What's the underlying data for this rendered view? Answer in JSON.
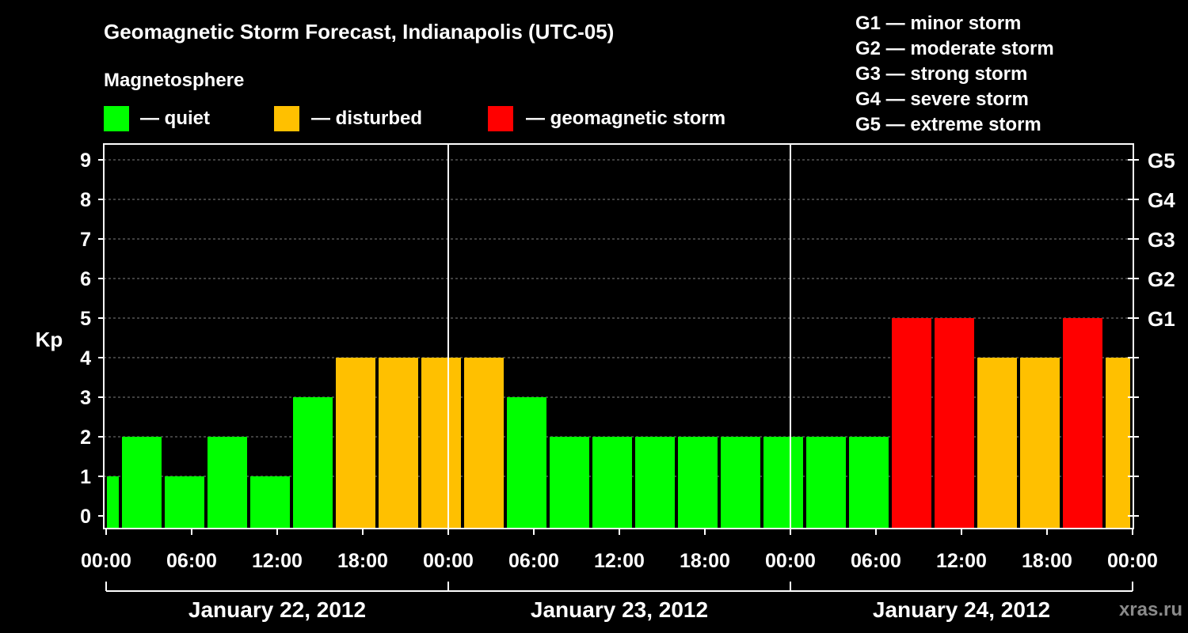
{
  "title": "Geomagnetic Storm Forecast, Indianapolis (UTC-05)",
  "legend": {
    "heading": "Magnetosphere",
    "items": [
      {
        "label": "— quiet",
        "color": "#00ff00"
      },
      {
        "label": "— disturbed",
        "color": "#ffc000"
      },
      {
        "label": "— geomagnetic storm",
        "color": "#ff0000"
      }
    ]
  },
  "storm_scale": [
    "G1 — minor storm",
    "G2 — moderate storm",
    "G3 — strong storm",
    "G4 — severe storm",
    "G5 — extreme storm"
  ],
  "watermark": "xras.ru",
  "colors": {
    "background": "#000000",
    "quiet": "#00ff00",
    "disturbed": "#ffc000",
    "storm": "#ff0000",
    "axis": "#ffffff",
    "grid": "#808080"
  },
  "chart_data": {
    "type": "bar",
    "ylabel": "Kp",
    "ylim": [
      0,
      9
    ],
    "yticks": [
      0,
      1,
      2,
      3,
      4,
      5,
      6,
      7,
      8,
      9
    ],
    "right_axis_labels": [
      {
        "kp": 5,
        "label": "G1"
      },
      {
        "kp": 6,
        "label": "G2"
      },
      {
        "kp": 7,
        "label": "G3"
      },
      {
        "kp": 8,
        "label": "G4"
      },
      {
        "kp": 9,
        "label": "G5"
      }
    ],
    "grid": "horizontal dashed",
    "x_hours_range": [
      0,
      72
    ],
    "x_tick_hours": [
      0,
      6,
      12,
      18,
      24,
      30,
      36,
      42,
      48,
      54,
      60,
      66,
      72
    ],
    "x_tick_labels": [
      "00:00",
      "06:00",
      "12:00",
      "18:00",
      "00:00",
      "06:00",
      "12:00",
      "18:00",
      "00:00",
      "06:00",
      "12:00",
      "18:00",
      "00:00"
    ],
    "day_separators_hours": [
      24,
      48
    ],
    "days": [
      {
        "label": "January 22, 2012",
        "start_hour": 0,
        "end_hour": 24
      },
      {
        "label": "January 23, 2012",
        "start_hour": 24,
        "end_hour": 48
      },
      {
        "label": "January 24, 2012",
        "start_hour": 48,
        "end_hour": 72
      }
    ],
    "bars": [
      {
        "start_hour": 0,
        "end_hour": 1,
        "kp": 1,
        "level": "quiet"
      },
      {
        "start_hour": 1,
        "end_hour": 4,
        "kp": 2,
        "level": "quiet"
      },
      {
        "start_hour": 4,
        "end_hour": 7,
        "kp": 1,
        "level": "quiet"
      },
      {
        "start_hour": 7,
        "end_hour": 10,
        "kp": 2,
        "level": "quiet"
      },
      {
        "start_hour": 10,
        "end_hour": 13,
        "kp": 1,
        "level": "quiet"
      },
      {
        "start_hour": 13,
        "end_hour": 16,
        "kp": 3,
        "level": "quiet"
      },
      {
        "start_hour": 16,
        "end_hour": 19,
        "kp": 4,
        "level": "disturbed"
      },
      {
        "start_hour": 19,
        "end_hour": 22,
        "kp": 4,
        "level": "disturbed"
      },
      {
        "start_hour": 22,
        "end_hour": 25,
        "kp": 4,
        "level": "disturbed"
      },
      {
        "start_hour": 25,
        "end_hour": 28,
        "kp": 4,
        "level": "disturbed"
      },
      {
        "start_hour": 28,
        "end_hour": 31,
        "kp": 3,
        "level": "quiet"
      },
      {
        "start_hour": 31,
        "end_hour": 34,
        "kp": 2,
        "level": "quiet"
      },
      {
        "start_hour": 34,
        "end_hour": 37,
        "kp": 2,
        "level": "quiet"
      },
      {
        "start_hour": 37,
        "end_hour": 40,
        "kp": 2,
        "level": "quiet"
      },
      {
        "start_hour": 40,
        "end_hour": 43,
        "kp": 2,
        "level": "quiet"
      },
      {
        "start_hour": 43,
        "end_hour": 46,
        "kp": 2,
        "level": "quiet"
      },
      {
        "start_hour": 46,
        "end_hour": 49,
        "kp": 2,
        "level": "quiet"
      },
      {
        "start_hour": 49,
        "end_hour": 52,
        "kp": 2,
        "level": "quiet"
      },
      {
        "start_hour": 52,
        "end_hour": 55,
        "kp": 2,
        "level": "quiet"
      },
      {
        "start_hour": 55,
        "end_hour": 58,
        "kp": 5,
        "level": "storm"
      },
      {
        "start_hour": 58,
        "end_hour": 61,
        "kp": 5,
        "level": "storm"
      },
      {
        "start_hour": 61,
        "end_hour": 64,
        "kp": 4,
        "level": "disturbed"
      },
      {
        "start_hour": 64,
        "end_hour": 67,
        "kp": 4,
        "level": "disturbed"
      },
      {
        "start_hour": 67,
        "end_hour": 70,
        "kp": 5,
        "level": "storm"
      },
      {
        "start_hour": 70,
        "end_hour": 72,
        "kp": 4,
        "level": "disturbed"
      }
    ]
  }
}
